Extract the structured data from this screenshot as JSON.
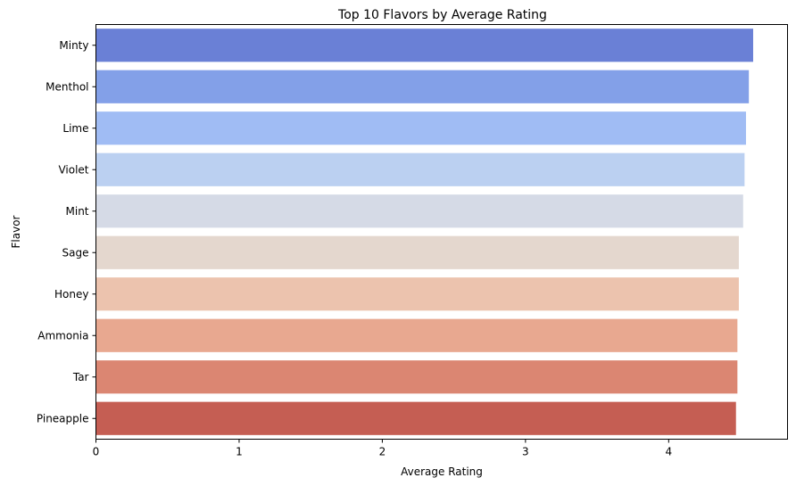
{
  "chart_data": {
    "type": "bar",
    "orientation": "horizontal",
    "title": "Top 10 Flavors by Average Rating",
    "xlabel": "Average Rating",
    "ylabel": "Flavor",
    "xlim": [
      0,
      4.83
    ],
    "xticks": [
      "0",
      "1",
      "2",
      "3",
      "4"
    ],
    "grid": false,
    "categories": [
      "Minty",
      "Menthol",
      "Lime",
      "Violet",
      "Mint",
      "Sage",
      "Honey",
      "Ammonia",
      "Tar",
      "Pineapple"
    ],
    "values": [
      4.59,
      4.56,
      4.54,
      4.53,
      4.52,
      4.49,
      4.49,
      4.48,
      4.48,
      4.47
    ],
    "colors": [
      "#6a80d6",
      "#83a0e8",
      "#a0bcf4",
      "#bbd0f1",
      "#d5dae6",
      "#e4d7ce",
      "#ecc3ae",
      "#e8a890",
      "#db8672",
      "#c55e53"
    ]
  }
}
